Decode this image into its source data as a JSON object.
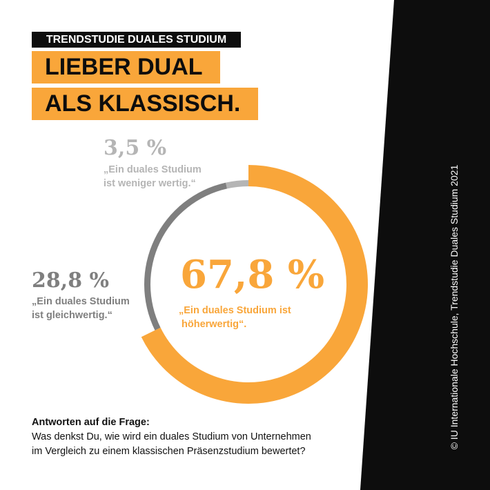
{
  "header": {
    "kicker": "TRENDSTUDIE DUALES STUDIUM",
    "headline_line1": "LIEBER DUAL",
    "headline_line2": "ALS KLASSISCH."
  },
  "chart_data": {
    "type": "pie",
    "variant": "donut",
    "start": "top",
    "direction": "clockwise",
    "series": [
      {
        "label": "„Ein duales Studium ist höherwertig“.",
        "value": 67.8,
        "value_label": "67,8 %",
        "color": "#f9a63a",
        "quote_line1": "„Ein duales Studium ist",
        "quote_line2": "höherwertig“."
      },
      {
        "label": "„Ein duales Studium ist gleichwertig.“",
        "value": 28.8,
        "value_label": "28,8 %",
        "color": "#7f7f7f",
        "quote_line1": "„Ein duales Studium",
        "quote_line2": "ist gleichwertig.“"
      },
      {
        "label": "„Ein duales Studium ist weniger wertig.“",
        "value": 3.5,
        "value_label": "3,5 %",
        "color": "#b5b5b5",
        "quote_line1": "„Ein duales Studium",
        "quote_line2": "ist weniger wertig.“"
      }
    ]
  },
  "footer": {
    "question_label": "Antworten auf die Frage:",
    "question_line1": "Was denkst Du, wie wird ein duales Studium von Unternehmen",
    "question_line2": "im Vergleich zu einem klassischen Präsenzstudium bewertet?"
  },
  "credit": "© IU Internationale Hochschule, Trendstudie Duales Studium 2021",
  "colors": {
    "accent": "#f9a63a",
    "dark": "#0d0d0d"
  }
}
